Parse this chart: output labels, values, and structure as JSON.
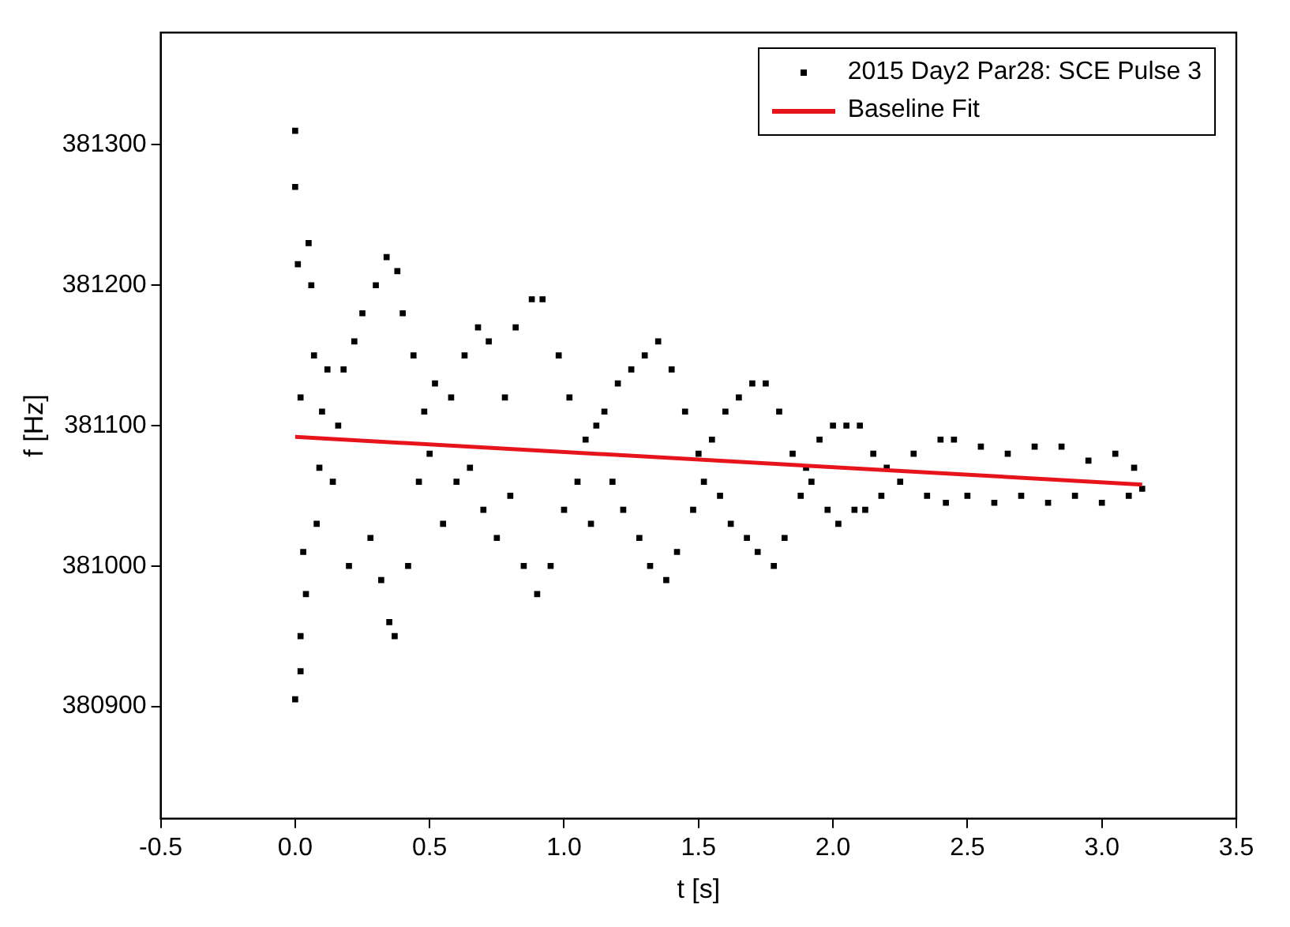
{
  "chart_data": {
    "type": "scatter",
    "xlabel": "t [s]",
    "ylabel": "f [Hz]",
    "xlim": [
      -0.5,
      3.5
    ],
    "ylim": [
      380820,
      381380
    ],
    "xticks": [
      {
        "value": -0.5,
        "label": "-0.5"
      },
      {
        "value": 0,
        "label": "0.0"
      },
      {
        "value": 0.5,
        "label": "0.5"
      },
      {
        "value": 1,
        "label": "1.0"
      },
      {
        "value": 1.5,
        "label": "1.5"
      },
      {
        "value": 2,
        "label": "2.0"
      },
      {
        "value": 2.5,
        "label": "2.5"
      },
      {
        "value": 3,
        "label": "3.0"
      },
      {
        "value": 3.5,
        "label": "3.5"
      }
    ],
    "yticks": [
      380900,
      381000,
      381100,
      381200,
      381300
    ],
    "grid": false,
    "legend": "top right",
    "marker": "square",
    "series": [
      {
        "name": "2015 Day2 Par28: SCE Pulse 3",
        "color": "#000000",
        "x": [
          0.0,
          0.0,
          0.01,
          0.02,
          0.03,
          0.0,
          0.02,
          0.02,
          0.04,
          0.05,
          0.06,
          0.07,
          0.08,
          0.09,
          0.1,
          0.12,
          0.14,
          0.16,
          0.18,
          0.2,
          0.22,
          0.25,
          0.28,
          0.3,
          0.32,
          0.34,
          0.35,
          0.37,
          0.38,
          0.4,
          0.42,
          0.44,
          0.46,
          0.48,
          0.5,
          0.52,
          0.55,
          0.58,
          0.6,
          0.63,
          0.65,
          0.68,
          0.7,
          0.72,
          0.75,
          0.78,
          0.8,
          0.82,
          0.85,
          0.88,
          0.9,
          0.92,
          0.95,
          0.98,
          1.0,
          1.02,
          1.05,
          1.08,
          1.1,
          1.12,
          1.15,
          1.18,
          1.2,
          1.22,
          1.25,
          1.28,
          1.3,
          1.32,
          1.35,
          1.38,
          1.4,
          1.42,
          1.45,
          1.48,
          1.5,
          1.52,
          1.55,
          1.58,
          1.6,
          1.62,
          1.65,
          1.68,
          1.7,
          1.72,
          1.75,
          1.78,
          1.8,
          1.82,
          1.85,
          1.88,
          1.9,
          1.92,
          1.95,
          1.98,
          2.0,
          2.02,
          2.05,
          2.08,
          2.1,
          2.12,
          2.15,
          2.18,
          2.2,
          2.25,
          2.3,
          2.35,
          2.4,
          2.42,
          2.45,
          2.5,
          2.55,
          2.6,
          2.65,
          2.7,
          2.75,
          2.8,
          2.85,
          2.9,
          2.95,
          3.0,
          3.05,
          3.1,
          3.12,
          3.15
        ],
        "values": [
          381310,
          381270,
          381215,
          381120,
          381010,
          380905,
          380925,
          380950,
          380980,
          381230,
          381200,
          381150,
          381030,
          381070,
          381110,
          381140,
          381060,
          381100,
          381140,
          381000,
          381160,
          381180,
          381020,
          381200,
          380990,
          381220,
          380960,
          380950,
          381210,
          381180,
          381000,
          381150,
          381060,
          381110,
          381080,
          381130,
          381030,
          381120,
          381060,
          381150,
          381070,
          381170,
          381040,
          381160,
          381020,
          381120,
          381050,
          381170,
          381000,
          381190,
          380980,
          381190,
          381000,
          381150,
          381040,
          381120,
          381060,
          381090,
          381030,
          381100,
          381110,
          381060,
          381130,
          381040,
          381140,
          381020,
          381150,
          381000,
          381160,
          380990,
          381140,
          381010,
          381110,
          381040,
          381080,
          381060,
          381090,
          381050,
          381110,
          381030,
          381120,
          381020,
          381130,
          381010,
          381130,
          381000,
          381110,
          381020,
          381080,
          381050,
          381070,
          381060,
          381090,
          381040,
          381100,
          381030,
          381100,
          381040,
          381100,
          381040,
          381080,
          381050,
          381070,
          381060,
          381080,
          381050,
          381090,
          381045,
          381090,
          381050,
          381085,
          381045,
          381080,
          381050,
          381085,
          381045,
          381085,
          381050,
          381075,
          381045,
          381080,
          381050,
          381070,
          381055
        ]
      },
      {
        "name": "Baseline Fit",
        "type": "line",
        "marker": "none",
        "color": "#e8141c",
        "x": [
          0,
          3.15
        ],
        "values": [
          381092,
          381058
        ]
      }
    ]
  }
}
